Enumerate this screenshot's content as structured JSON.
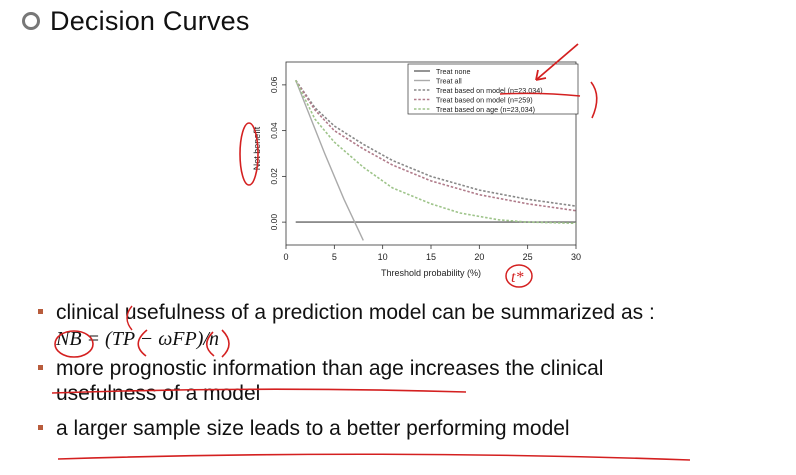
{
  "slide": {
    "title": "Decision Curves",
    "bullets": [
      "clinical usefulness of a prediction model can be summarized as :",
      "more prognostic information than age increases the clinical",
      "usefulness of a model",
      "a larger sample size leads to a better performing model"
    ],
    "formula": "NB = (TP − ωFP)/n"
  },
  "colors": {
    "annotation": "#d42020",
    "bullet": "#b85c3c",
    "treat_none": "#666666",
    "treat_all": "#aaaaaa",
    "model_large": "#888888",
    "model_small": "#b07b8a",
    "age": "#9ec48a"
  },
  "handwriting": {
    "threshold_mark": "t*"
  },
  "chart_data": {
    "type": "line",
    "xlabel": "Threshold probability (%)",
    "ylabel": "Net benefit",
    "xlim": [
      0,
      30
    ],
    "ylim": [
      -0.01,
      0.07
    ],
    "xticks": [
      "0",
      "5",
      "10",
      "15",
      "20",
      "25",
      "30"
    ],
    "yticks": [
      "0.00",
      "0.02",
      "0.04",
      "0.06"
    ],
    "legend_position": "top-right",
    "series": [
      {
        "name": "Treat none",
        "style": "solid",
        "color": "#666666",
        "x": [
          1,
          30
        ],
        "y": [
          0,
          0
        ]
      },
      {
        "name": "Treat all",
        "style": "solid",
        "color": "#aaaaaa",
        "x": [
          1,
          4,
          6,
          8
        ],
        "y": [
          0.062,
          0.03,
          0.01,
          -0.008
        ]
      },
      {
        "name": "Treat based on model (n=23,034)",
        "style": "dashed",
        "color": "#888888",
        "x": [
          1,
          3,
          5,
          8,
          11,
          15,
          20,
          25,
          30
        ],
        "y": [
          0.062,
          0.05,
          0.042,
          0.034,
          0.027,
          0.02,
          0.014,
          0.01,
          0.007
        ]
      },
      {
        "name": "Treat based on model (n=259)",
        "style": "dashed",
        "color": "#b07b8a",
        "x": [
          1,
          3,
          5,
          8,
          11,
          15,
          20,
          25,
          30
        ],
        "y": [
          0.062,
          0.049,
          0.04,
          0.032,
          0.025,
          0.018,
          0.012,
          0.008,
          0.005
        ]
      },
      {
        "name": "Treat based on age (n=23,034)",
        "style": "dashed",
        "color": "#9ec48a",
        "x": [
          1,
          3,
          5,
          8,
          11,
          15,
          18,
          22,
          25,
          30
        ],
        "y": [
          0.062,
          0.045,
          0.035,
          0.024,
          0.015,
          0.008,
          0.004,
          0.001,
          0.0,
          -0.0005
        ]
      }
    ]
  }
}
